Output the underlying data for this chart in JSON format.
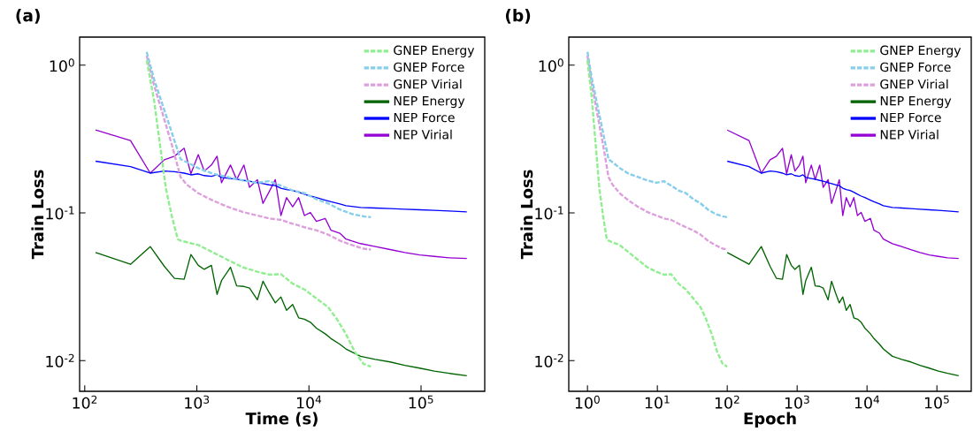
{
  "chart_data": [
    {
      "type": "line",
      "title": "(a)",
      "xlabel": "Time (s)",
      "ylabel": "Train Loss",
      "log": "xy",
      "legend": "top right",
      "xlim": [
        90,
        370000
      ],
      "ylim": [
        0.0062,
        1.55
      ],
      "xticks": [
        {
          "value": 100,
          "label": "10$^{2}$"
        },
        {
          "value": 1000,
          "label": "10$^{3}$"
        },
        {
          "value": 10000,
          "label": "10$^{4}$"
        },
        {
          "value": 100000,
          "label": "10$^{5}$"
        }
      ],
      "yticks": [
        {
          "value": 0.01,
          "label": "10$^{-2}$"
        },
        {
          "value": 0.1,
          "label": "10$^{-1}$"
        },
        {
          "value": 1,
          "label": "10$^{0}$"
        }
      ],
      "series": [
        {
          "name": "GNEP Energy",
          "color": "#90ee90",
          "line_style": "dashed",
          "x": [
            357,
            415,
            469,
            530,
            597,
            675,
            716,
            1030,
            1396,
            1888,
            2558,
            3459,
            4416,
            5623,
            7161,
            9141,
            11640,
            14830,
            17780,
            21330,
            25590,
            30690,
            35730
          ],
          "values": [
            1.08,
            0.582,
            0.291,
            0.146,
            0.096,
            0.0664,
            0.0649,
            0.0606,
            0.054,
            0.0481,
            0.0429,
            0.04,
            0.0382,
            0.0385,
            0.0332,
            0.0303,
            0.0264,
            0.023,
            0.0191,
            0.0152,
            0.0115,
            0.0095,
            0.0091
          ]
        },
        {
          "name": "GNEP Force",
          "color": "#87ceeb",
          "line_style": "dashed",
          "x": [
            357,
            415,
            498,
            597,
            716,
            809,
            1030,
            1396,
            1888,
            2558,
            3459,
            4416,
            5623,
            7161,
            9141,
            11640,
            14830,
            18880,
            24100,
            30690,
            35730
          ],
          "values": [
            1.23,
            0.805,
            0.531,
            0.351,
            0.231,
            0.221,
            0.201,
            0.184,
            0.175,
            0.166,
            0.16,
            0.164,
            0.153,
            0.142,
            0.136,
            0.124,
            0.116,
            0.1054,
            0.0984,
            0.0948,
            0.0935
          ]
        },
        {
          "name": "GNEP Virial",
          "color": "#dda0dd",
          "line_style": "dashed",
          "x": [
            357,
            415,
            498,
            597,
            716,
            809,
            1030,
            1396,
            1888,
            2558,
            3459,
            4416,
            5623,
            7161,
            9141,
            11640,
            14830,
            18880,
            24100,
            30690,
            35730
          ],
          "values": [
            1.16,
            0.734,
            0.462,
            0.291,
            0.175,
            0.156,
            0.136,
            0.121,
            0.11,
            0.1016,
            0.096,
            0.0918,
            0.0897,
            0.0845,
            0.08,
            0.0763,
            0.0713,
            0.0649,
            0.0606,
            0.0573,
            0.0565
          ]
        },
        {
          "name": "NEP Energy",
          "color": "#006400",
          "line_style": "solid",
          "x": [
            125,
            256,
            384,
            513,
            631,
            771,
            885,
            1030,
            1164,
            1349,
            1514,
            1660,
            1995,
            2265,
            2630,
            2951,
            3467,
            3890,
            4416,
            5012,
            5623,
            6310,
            7161,
            8091,
            9120,
            10300,
            11640,
            13960,
            15740,
            18880,
            21380,
            28840,
            39080,
            52970,
            71610,
            97050,
            131200,
            177800,
            255900
          ],
          "values": [
            0.054,
            0.0449,
            0.0592,
            0.0435,
            0.0361,
            0.0356,
            0.0523,
            0.0442,
            0.0415,
            0.0442,
            0.0281,
            0.0348,
            0.0429,
            0.0321,
            0.0318,
            0.031,
            0.0258,
            0.0345,
            0.0289,
            0.0246,
            0.027,
            0.0219,
            0.024,
            0.0195,
            0.0191,
            0.0182,
            0.0166,
            0.0152,
            0.0141,
            0.0129,
            0.012,
            0.0107,
            0.0102,
            0.0098,
            0.0093,
            0.0089,
            0.0085,
            0.0082,
            0.0079
          ]
        },
        {
          "name": "NEP Force",
          "color": "#0000ff",
          "line_style": "solid",
          "x": [
            125,
            256,
            384,
            513,
            631,
            771,
            885,
            1030,
            1164,
            1349,
            1514,
            1660,
            1995,
            2265,
            2630,
            2951,
            3467,
            3890,
            4416,
            5012,
            5623,
            6310,
            7161,
            8091,
            9120,
            10300,
            11640,
            13960,
            15740,
            18880,
            21380,
            28840,
            39080,
            52970,
            71610,
            97050,
            131200,
            177800,
            255900
          ],
          "values": [
            0.224,
            0.206,
            0.186,
            0.192,
            0.19,
            0.186,
            0.181,
            0.184,
            0.179,
            0.177,
            0.181,
            0.174,
            0.171,
            0.169,
            0.166,
            0.164,
            0.16,
            0.158,
            0.155,
            0.153,
            0.147,
            0.144,
            0.142,
            0.138,
            0.134,
            0.13,
            0.127,
            0.122,
            0.119,
            0.115,
            0.112,
            0.109,
            0.108,
            0.107,
            0.106,
            0.105,
            0.104,
            0.103,
            0.1016
          ]
        },
        {
          "name": "NEP Virial",
          "color": "#9400d3",
          "line_style": "solid",
          "x": [
            125,
            256,
            384,
            513,
            631,
            771,
            885,
            1030,
            1164,
            1349,
            1514,
            1660,
            1995,
            2265,
            2630,
            2951,
            3467,
            3890,
            4416,
            5012,
            5623,
            6310,
            7161,
            8091,
            9120,
            10300,
            11640,
            13960,
            15740,
            18880,
            21380,
            28840,
            39080,
            52970,
            71610,
            97050,
            131200,
            177800,
            255900
          ],
          "values": [
            0.364,
            0.309,
            0.186,
            0.229,
            0.242,
            0.274,
            0.184,
            0.248,
            0.192,
            0.211,
            0.242,
            0.16,
            0.211,
            0.168,
            0.211,
            0.149,
            0.168,
            0.116,
            0.139,
            0.168,
            0.096,
            0.127,
            0.11,
            0.127,
            0.096,
            0.1007,
            0.0877,
            0.0918,
            0.0763,
            0.0729,
            0.0665,
            0.062,
            0.0592,
            0.0565,
            0.054,
            0.052,
            0.0508,
            0.0497,
            0.0492
          ]
        }
      ]
    },
    {
      "type": "line",
      "title": "(b)",
      "xlabel": "Epoch",
      "ylabel": "Train Loss",
      "log": "xy",
      "legend": "top right",
      "xlim": [
        0.54,
        310000
      ],
      "ylim": [
        0.0062,
        1.55
      ],
      "xticks": [
        {
          "value": 1,
          "label": "10$^{0}$"
        },
        {
          "value": 10,
          "label": "10$^{1}$"
        },
        {
          "value": 100,
          "label": "10$^{2}$"
        },
        {
          "value": 1000,
          "label": "10$^{3}$"
        },
        {
          "value": 10000,
          "label": "10$^{4}$"
        },
        {
          "value": 100000,
          "label": "10$^{5}$"
        }
      ],
      "yticks": [
        {
          "value": 0.01,
          "label": "10$^{-2}$"
        },
        {
          "value": 0.1,
          "label": "10$^{-1}$"
        },
        {
          "value": 1,
          "label": "10$^{0}$"
        }
      ],
      "series": [
        {
          "name": "GNEP Energy",
          "color": "#90ee90",
          "line_style": "dashed",
          "x": [
            1,
            1.16,
            1.31,
            1.48,
            1.67,
            1.89,
            2.0,
            2.89,
            3.91,
            5.29,
            7.17,
            9.69,
            12.4,
            15.8,
            20.1,
            25.6,
            32.6,
            41.5,
            49.8,
            59.7,
            71.7,
            86,
            100
          ],
          "values": [
            1.08,
            0.582,
            0.291,
            0.146,
            0.096,
            0.0664,
            0.0649,
            0.0606,
            0.054,
            0.0481,
            0.0429,
            0.04,
            0.0382,
            0.0385,
            0.0332,
            0.0303,
            0.0264,
            0.023,
            0.0191,
            0.0152,
            0.0115,
            0.0095,
            0.0091
          ]
        },
        {
          "name": "GNEP Force",
          "color": "#87ceeb",
          "line_style": "dashed",
          "x": [
            1,
            1.16,
            1.39,
            1.67,
            2.0,
            2.27,
            2.89,
            3.91,
            5.29,
            7.17,
            9.69,
            12.4,
            15.8,
            20.1,
            25.6,
            32.6,
            41.5,
            52.9,
            67.5,
            86,
            100
          ],
          "values": [
            1.23,
            0.805,
            0.531,
            0.351,
            0.231,
            0.221,
            0.201,
            0.184,
            0.175,
            0.166,
            0.16,
            0.164,
            0.153,
            0.142,
            0.136,
            0.124,
            0.116,
            0.1054,
            0.0984,
            0.0948,
            0.0935
          ]
        },
        {
          "name": "GNEP Virial",
          "color": "#dda0dd",
          "line_style": "dashed",
          "x": [
            1,
            1.16,
            1.39,
            1.67,
            2.0,
            2.27,
            2.89,
            3.91,
            5.29,
            7.17,
            9.69,
            12.4,
            15.8,
            20.1,
            25.6,
            32.6,
            41.5,
            52.9,
            67.5,
            86,
            100
          ],
          "values": [
            1.16,
            0.734,
            0.462,
            0.291,
            0.175,
            0.156,
            0.136,
            0.121,
            0.11,
            0.1016,
            0.096,
            0.0918,
            0.0897,
            0.0845,
            0.08,
            0.0763,
            0.0713,
            0.0649,
            0.0606,
            0.0573,
            0.0565
          ]
        },
        {
          "name": "NEP Energy",
          "color": "#006400",
          "line_style": "solid",
          "x": [
            100,
            205,
            307,
            410,
            505,
            617,
            708,
            824,
            931,
            1079,
            1211,
            1328,
            1596,
            1812,
            2104,
            2361,
            2774,
            3112,
            3533,
            4010,
            4498,
            5048,
            5729,
            6473,
            7296,
            8240,
            9312,
            11170,
            12590,
            15100,
            17100,
            23070,
            31260,
            42380,
            57290,
            77640,
            105000,
            142200,
            204700
          ],
          "values": [
            0.054,
            0.0449,
            0.0592,
            0.0435,
            0.0361,
            0.0356,
            0.0523,
            0.0442,
            0.0415,
            0.0442,
            0.0281,
            0.0348,
            0.0429,
            0.0321,
            0.0318,
            0.031,
            0.0258,
            0.0345,
            0.0289,
            0.0246,
            0.027,
            0.0219,
            0.024,
            0.0195,
            0.0191,
            0.0182,
            0.0166,
            0.0152,
            0.0141,
            0.0129,
            0.012,
            0.0107,
            0.0102,
            0.0098,
            0.0093,
            0.0089,
            0.0085,
            0.0082,
            0.0079
          ]
        },
        {
          "name": "NEP Force",
          "color": "#0000ff",
          "line_style": "solid",
          "x": [
            100,
            205,
            307,
            410,
            505,
            617,
            708,
            824,
            931,
            1079,
            1211,
            1328,
            1596,
            1812,
            2104,
            2361,
            2774,
            3112,
            3533,
            4010,
            4498,
            5048,
            5729,
            6473,
            7296,
            8240,
            9312,
            11170,
            12590,
            15100,
            17100,
            23070,
            31260,
            42380,
            57290,
            77640,
            105000,
            142200,
            204700
          ],
          "values": [
            0.224,
            0.206,
            0.186,
            0.192,
            0.19,
            0.186,
            0.181,
            0.184,
            0.179,
            0.177,
            0.181,
            0.174,
            0.171,
            0.169,
            0.166,
            0.164,
            0.16,
            0.158,
            0.155,
            0.153,
            0.147,
            0.144,
            0.142,
            0.138,
            0.134,
            0.13,
            0.127,
            0.122,
            0.119,
            0.115,
            0.112,
            0.109,
            0.108,
            0.107,
            0.106,
            0.105,
            0.104,
            0.103,
            0.1016
          ]
        },
        {
          "name": "NEP Virial",
          "color": "#9400d3",
          "line_style": "solid",
          "x": [
            100,
            205,
            307,
            410,
            505,
            617,
            708,
            824,
            931,
            1079,
            1211,
            1328,
            1596,
            1812,
            2104,
            2361,
            2774,
            3112,
            3533,
            4010,
            4498,
            5048,
            5729,
            6473,
            7296,
            8240,
            9312,
            11170,
            12590,
            15100,
            17100,
            23070,
            31260,
            42380,
            57290,
            77640,
            105000,
            142200,
            204700
          ],
          "values": [
            0.364,
            0.309,
            0.186,
            0.229,
            0.242,
            0.274,
            0.184,
            0.248,
            0.192,
            0.211,
            0.242,
            0.16,
            0.211,
            0.168,
            0.211,
            0.149,
            0.168,
            0.116,
            0.139,
            0.168,
            0.096,
            0.127,
            0.11,
            0.127,
            0.096,
            0.1007,
            0.0877,
            0.0918,
            0.0763,
            0.0729,
            0.0665,
            0.062,
            0.0592,
            0.0565,
            0.054,
            0.052,
            0.0508,
            0.0497,
            0.0492
          ]
        }
      ]
    }
  ]
}
